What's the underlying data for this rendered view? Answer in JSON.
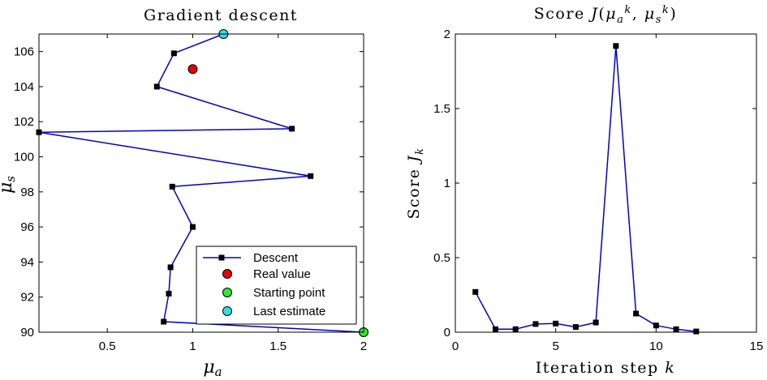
{
  "chart_data": [
    {
      "type": "line",
      "title": "Gradient descent",
      "xlabel": "μ_a",
      "ylabel": "μ_s",
      "xlim": [
        0.1,
        2.0
      ],
      "ylim": [
        90,
        107
      ],
      "xticks": [
        "0.5",
        "1",
        "1.5",
        "2"
      ],
      "yticks": [
        "90",
        "92",
        "94",
        "96",
        "98",
        "100",
        "102",
        "104",
        "106"
      ],
      "grid": false,
      "legend_position": "bottom-right",
      "series": [
        {
          "name": "Descent",
          "color": "#0000cc",
          "marker": "square",
          "x": [
            2.0,
            0.83,
            0.86,
            0.87,
            1.0,
            0.88,
            1.69,
            0.1,
            1.58,
            0.79,
            0.89,
            1.18
          ],
          "y": [
            90.0,
            90.6,
            92.2,
            93.7,
            96.0,
            98.3,
            98.9,
            101.4,
            101.6,
            104.0,
            105.9,
            107.0
          ]
        }
      ],
      "points": [
        {
          "name": "Real value",
          "color": "#e60000",
          "x": 1.0,
          "y": 105.0
        },
        {
          "name": "Starting point",
          "color": "#33e633",
          "x": 2.0,
          "y": 90.0
        },
        {
          "name": "Last estimate",
          "color": "#33dde6",
          "x": 1.18,
          "y": 107.0
        }
      ]
    },
    {
      "type": "line",
      "title": "Score J(μ_a^k, μ_s^k)",
      "xlabel": "Iteration step k",
      "ylabel": "Score J_k",
      "xlim": [
        0,
        15
      ],
      "ylim": [
        0,
        2
      ],
      "xticks": [
        "0",
        "5",
        "10",
        "15"
      ],
      "yticks": [
        "0",
        "0.5",
        "1",
        "1.5",
        "2"
      ],
      "grid": false,
      "series": [
        {
          "color": "#0000cc",
          "marker": "square",
          "x": [
            1,
            2,
            3,
            4,
            5,
            6,
            7,
            8,
            9,
            10,
            11,
            12
          ],
          "y": [
            0.27,
            0.02,
            0.02,
            0.055,
            0.058,
            0.035,
            0.065,
            1.92,
            0.125,
            0.045,
            0.02,
            0.005
          ]
        }
      ]
    }
  ]
}
